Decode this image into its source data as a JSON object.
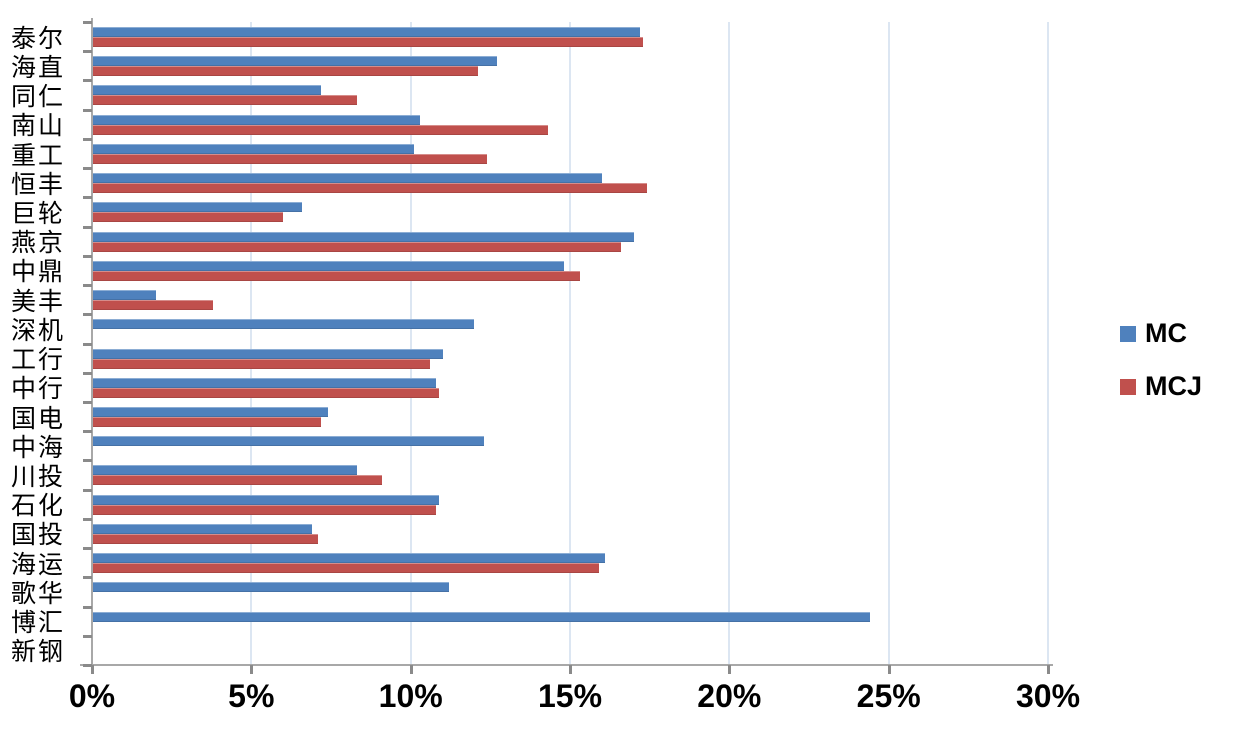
{
  "chart_data": {
    "type": "bar",
    "orientation": "horizontal",
    "title": "",
    "xlabel": "",
    "ylabel": "",
    "xlim": [
      0,
      30
    ],
    "x_tick_labels": [
      "0%",
      "5%",
      "10%",
      "15%",
      "20%",
      "25%",
      "30%"
    ],
    "grid": true,
    "legend_position": "right",
    "categories": [
      "泰尔",
      "海直",
      "同仁",
      "南山",
      "重工",
      "恒丰",
      "巨轮",
      "燕京",
      "中鼎",
      "美丰",
      "深机",
      "工行",
      "中行",
      "国电",
      "中海",
      "川投",
      "石化",
      "国投",
      "海运",
      "歌华",
      "博汇",
      "新钢"
    ],
    "series": [
      {
        "name": "MC",
        "color": "#4F81BD",
        "unit": "%",
        "values": [
          17.2,
          12.7,
          7.2,
          10.3,
          10.1,
          16.0,
          6.6,
          17.0,
          14.8,
          2.0,
          12.0,
          11.0,
          10.8,
          7.4,
          12.3,
          8.3,
          10.9,
          6.9,
          16.1,
          11.2,
          24.4,
          null
        ]
      },
      {
        "name": "MCJ",
        "color": "#C0504D",
        "unit": "%",
        "values": [
          17.3,
          12.1,
          8.3,
          14.3,
          12.4,
          17.4,
          6.0,
          16.6,
          15.3,
          3.8,
          null,
          10.6,
          10.9,
          7.2,
          null,
          9.1,
          10.8,
          7.1,
          15.9,
          null,
          null,
          null
        ]
      }
    ],
    "colors": {
      "mc_blue": "#4F81BD",
      "mcj_red": "#C0504D",
      "gridline": "#dce6f2",
      "axis": "#a8a8a8",
      "text": "#000000"
    }
  }
}
